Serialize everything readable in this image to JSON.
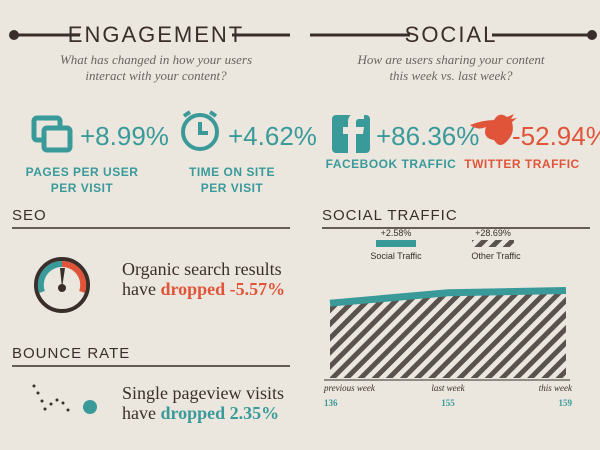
{
  "engagement": {
    "title": "ENGAGEMENT",
    "question": [
      "What has changed in how your users",
      "interact with your content?"
    ],
    "metrics": [
      {
        "value": "+8.99%",
        "label": [
          "PAGES PER USER",
          "PER VISIT"
        ]
      },
      {
        "value": "+4.62%",
        "label": [
          "TIME ON SITE",
          "PER VISIT"
        ]
      }
    ]
  },
  "social": {
    "title": "SOCIAL",
    "question": [
      "How are users sharing your content",
      "this week vs. last week?"
    ],
    "metrics": [
      {
        "value": "+86.36%",
        "label": "FACEBOOK TRAFFIC"
      },
      {
        "value": "-52.94%",
        "label": "TWITTER TRAFFIC"
      }
    ]
  },
  "seo": {
    "title": "SEO",
    "text": [
      "Organic search results",
      "have"
    ],
    "highlight": "dropped -5.57%"
  },
  "bounce": {
    "title": "BOUNCE RATE",
    "text": [
      "Single pageview visits",
      "have"
    ],
    "highlight": "dropped 2.35%"
  },
  "social_traffic": {
    "title": "SOCIAL TRAFFIC",
    "legend": [
      {
        "value": "+2.58%",
        "name": "Social Traffic"
      },
      {
        "value": "+28.69%",
        "name": "Other Traffic"
      }
    ],
    "categories": [
      "previous week",
      "last week",
      "this week"
    ],
    "values": [
      136,
      155,
      159
    ]
  }
}
